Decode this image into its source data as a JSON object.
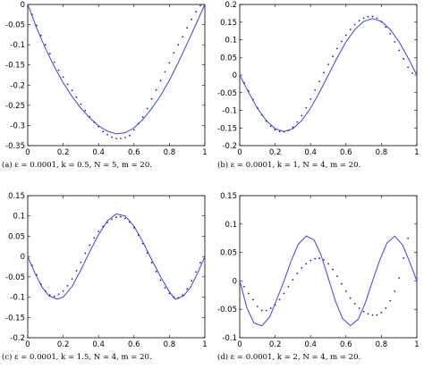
{
  "colors": {
    "line": "#3b46d6",
    "points": "#1a1ab4",
    "axes": "#000000"
  },
  "chart_data": [
    {
      "type": "line",
      "caption": "(a) ε = 0.0001, k = 0.5, N = 5, m = 20.",
      "xlim": [
        0,
        1
      ],
      "ylim": [
        -0.35,
        0
      ],
      "xticks": [
        0,
        0.2,
        0.4,
        0.6,
        0.8,
        1
      ],
      "xtick_labels": [
        "0",
        "0.2",
        "0.4",
        "0.6",
        "0.8",
        "1"
      ],
      "yticks": [
        0,
        -0.05,
        -0.1,
        -0.15,
        -0.2,
        -0.25,
        -0.3,
        -0.35
      ],
      "ytick_labels": [
        "0",
        "-0.05",
        "-0.1",
        "-0.15",
        "-0.2",
        "-0.25",
        "-0.3",
        "-0.35"
      ],
      "grid": false,
      "series": [
        {
          "style": "line",
          "x": [
            0,
            0.05,
            0.1,
            0.15,
            0.2,
            0.25,
            0.3,
            0.35,
            0.4,
            0.45,
            0.5,
            0.55,
            0.6,
            0.65,
            0.7,
            0.75,
            0.8,
            0.85,
            0.9,
            0.95,
            1
          ],
          "y": [
            0,
            -0.058,
            -0.109,
            -0.154,
            -0.194,
            -0.228,
            -0.257,
            -0.281,
            -0.301,
            -0.314,
            -0.321,
            -0.318,
            -0.306,
            -0.285,
            -0.258,
            -0.226,
            -0.188,
            -0.144,
            -0.097,
            -0.049,
            0
          ]
        },
        {
          "style": "points",
          "x": [
            0.025,
            0.05,
            0.075,
            0.1,
            0.125,
            0.15,
            0.175,
            0.2,
            0.225,
            0.25,
            0.275,
            0.3,
            0.325,
            0.35,
            0.375,
            0.4,
            0.425,
            0.45,
            0.475,
            0.5,
            0.525,
            0.55,
            0.575,
            0.6,
            0.625,
            0.65,
            0.675,
            0.7,
            0.725,
            0.75,
            0.775,
            0.8,
            0.825,
            0.85,
            0.875,
            0.9,
            0.925,
            0.95,
            0.975
          ],
          "y": [
            -0.025,
            -0.052,
            -0.077,
            -0.1,
            -0.122,
            -0.143,
            -0.163,
            -0.18,
            -0.198,
            -0.213,
            -0.23,
            -0.247,
            -0.263,
            -0.278,
            -0.292,
            -0.303,
            -0.315,
            -0.323,
            -0.329,
            -0.332,
            -0.332,
            -0.33,
            -0.325,
            -0.311,
            -0.296,
            -0.279,
            -0.258,
            -0.234,
            -0.212,
            -0.189,
            -0.167,
            -0.145,
            -0.12,
            -0.1,
            -0.08,
            -0.058,
            -0.037,
            -0.018,
            -0.003
          ]
        }
      ]
    },
    {
      "type": "line",
      "caption": "(b) ε = 0.0001, k = 1, N = 4, m = 20.",
      "xlim": [
        0,
        1
      ],
      "ylim": [
        -0.2,
        0.2
      ],
      "xticks": [
        0,
        0.2,
        0.4,
        0.6,
        0.8,
        1
      ],
      "xtick_labels": [
        "0",
        "0.2",
        "0.4",
        "0.6",
        "0.8",
        "1"
      ],
      "yticks": [
        0.2,
        0.15,
        0.1,
        0.05,
        0,
        -0.05,
        -0.1,
        -0.15,
        -0.2
      ],
      "ytick_labels": [
        "0.2",
        "0.15",
        "0.1",
        "0.05",
        "0",
        "-0.05",
        "-0.1",
        "-0.15",
        "-0.2"
      ],
      "grid": false,
      "series": [
        {
          "style": "line",
          "x": [
            0,
            0.05,
            0.1,
            0.15,
            0.2,
            0.25,
            0.3,
            0.35,
            0.4,
            0.45,
            0.5,
            0.55,
            0.6,
            0.65,
            0.7,
            0.75,
            0.8,
            0.85,
            0.9,
            0.95,
            1
          ],
          "y": [
            0,
            -0.049,
            -0.094,
            -0.129,
            -0.152,
            -0.16,
            -0.152,
            -0.129,
            -0.094,
            -0.049,
            0,
            0.049,
            0.094,
            0.129,
            0.152,
            0.16,
            0.152,
            0.129,
            0.094,
            0.049,
            0
          ]
        },
        {
          "style": "points",
          "x": [
            0.025,
            0.05,
            0.075,
            0.1,
            0.125,
            0.15,
            0.175,
            0.2,
            0.225,
            0.25,
            0.275,
            0.3,
            0.325,
            0.35,
            0.375,
            0.4,
            0.425,
            0.45,
            0.475,
            0.5,
            0.525,
            0.55,
            0.575,
            0.6,
            0.625,
            0.65,
            0.675,
            0.7,
            0.725,
            0.75,
            0.775,
            0.8,
            0.825,
            0.85,
            0.875,
            0.9,
            0.925,
            0.95,
            0.975
          ],
          "y": [
            -0.022,
            -0.045,
            -0.07,
            -0.093,
            -0.113,
            -0.13,
            -0.145,
            -0.155,
            -0.16,
            -0.161,
            -0.157,
            -0.148,
            -0.133,
            -0.115,
            -0.093,
            -0.068,
            -0.043,
            -0.018,
            0.007,
            0.03,
            0.053,
            0.075,
            0.095,
            0.113,
            0.129,
            0.143,
            0.154,
            0.161,
            0.165,
            0.166,
            0.161,
            0.151,
            0.136,
            0.117,
            0.094,
            0.07,
            0.046,
            0.022,
            0.005
          ]
        }
      ]
    },
    {
      "type": "line",
      "caption": "(c) ε = 0.0001, k = 1.5, N = 4, m = 20.",
      "xlim": [
        0,
        1
      ],
      "ylim": [
        -0.2,
        0.15
      ],
      "xticks": [
        0,
        0.2,
        0.4,
        0.6,
        0.8,
        1
      ],
      "xtick_labels": [
        "0",
        "0.2",
        "0.4",
        "0.6",
        "0.8",
        "1"
      ],
      "yticks": [
        0.15,
        0.1,
        0.05,
        0,
        -0.05,
        -0.1,
        -0.15,
        -0.2
      ],
      "ytick_labels": [
        "0.15",
        "0.1",
        "0.05",
        "0",
        "-0.05",
        "-0.1",
        "-0.15",
        "-0.2"
      ],
      "grid": false,
      "series": [
        {
          "style": "line",
          "x": [
            0,
            0.04,
            0.08,
            0.12,
            0.167,
            0.2,
            0.25,
            0.3,
            0.35,
            0.4,
            0.45,
            0.5,
            0.55,
            0.6,
            0.65,
            0.7,
            0.75,
            0.8,
            0.833,
            0.88,
            0.92,
            0.96,
            1
          ],
          "y": [
            0,
            -0.04,
            -0.075,
            -0.097,
            -0.105,
            -0.1,
            -0.074,
            -0.033,
            0.012,
            0.054,
            0.088,
            0.105,
            0.1,
            0.075,
            0.036,
            -0.008,
            -0.05,
            -0.087,
            -0.105,
            -0.097,
            -0.075,
            -0.04,
            0
          ]
        },
        {
          "style": "points",
          "x": [
            0.025,
            0.05,
            0.075,
            0.1,
            0.125,
            0.15,
            0.175,
            0.2,
            0.225,
            0.25,
            0.275,
            0.3,
            0.325,
            0.35,
            0.375,
            0.4,
            0.425,
            0.45,
            0.475,
            0.5,
            0.525,
            0.55,
            0.575,
            0.6,
            0.625,
            0.65,
            0.675,
            0.7,
            0.725,
            0.75,
            0.775,
            0.8,
            0.825,
            0.85,
            0.875,
            0.9,
            0.925,
            0.95,
            0.975
          ],
          "y": [
            -0.022,
            -0.045,
            -0.068,
            -0.085,
            -0.095,
            -0.098,
            -0.093,
            -0.085,
            -0.072,
            -0.055,
            -0.035,
            -0.014,
            0.008,
            0.028,
            0.046,
            0.062,
            0.074,
            0.084,
            0.092,
            0.097,
            0.098,
            0.094,
            0.085,
            0.071,
            0.053,
            0.032,
            0.009,
            -0.015,
            -0.037,
            -0.058,
            -0.077,
            -0.091,
            -0.1,
            -0.102,
            -0.095,
            -0.08,
            -0.06,
            -0.038,
            -0.015
          ]
        }
      ]
    },
    {
      "type": "line",
      "caption": "(d) ε = 0.0001, k = 2, N = 4, m = 20.",
      "xlim": [
        0,
        1
      ],
      "ylim": [
        -0.1,
        0.15
      ],
      "xticks": [
        0,
        0.2,
        0.4,
        0.6,
        0.8,
        1
      ],
      "xtick_labels": [
        "0",
        "0.2",
        "0.4",
        "0.6",
        "0.8",
        "1"
      ],
      "yticks": [
        0.15,
        0.1,
        0.05,
        0,
        -0.05,
        -0.1
      ],
      "ytick_labels": [
        "0.15",
        "0.1",
        "0.05",
        "0",
        "-0.05",
        "-0.1"
      ],
      "grid": false,
      "series": [
        {
          "style": "line",
          "x": [
            0,
            0.04,
            0.08,
            0.125,
            0.17,
            0.21,
            0.25,
            0.29,
            0.33,
            0.375,
            0.42,
            0.46,
            0.5,
            0.54,
            0.58,
            0.625,
            0.67,
            0.71,
            0.75,
            0.79,
            0.83,
            0.875,
            0.92,
            0.96,
            1
          ],
          "y": [
            0,
            -0.047,
            -0.074,
            -0.079,
            -0.063,
            -0.032,
            0,
            0.035,
            0.064,
            0.079,
            0.072,
            0.045,
            0.005,
            -0.035,
            -0.066,
            -0.079,
            -0.067,
            -0.038,
            0,
            0.036,
            0.066,
            0.079,
            0.063,
            0.033,
            0
          ]
        },
        {
          "style": "points",
          "x": [
            0.025,
            0.05,
            0.075,
            0.1,
            0.125,
            0.15,
            0.175,
            0.2,
            0.225,
            0.25,
            0.275,
            0.3,
            0.325,
            0.35,
            0.375,
            0.4,
            0.425,
            0.45,
            0.475,
            0.5,
            0.525,
            0.55,
            0.575,
            0.6,
            0.625,
            0.65,
            0.675,
            0.7,
            0.725,
            0.75,
            0.775,
            0.8,
            0.825,
            0.85,
            0.875,
            0.9,
            0.925,
            0.95
          ],
          "y": [
            -0.01,
            -0.022,
            -0.033,
            -0.045,
            -0.052,
            -0.052,
            -0.048,
            -0.042,
            -0.033,
            -0.022,
            -0.01,
            0.002,
            0.013,
            0.023,
            0.03,
            0.036,
            0.039,
            0.04,
            0.037,
            0.03,
            0.02,
            0.008,
            -0.005,
            -0.018,
            -0.03,
            -0.04,
            -0.048,
            -0.054,
            -0.058,
            -0.06,
            -0.06,
            -0.056,
            -0.048,
            -0.035,
            -0.018,
            0.005,
            0.04,
            0.075
          ]
        }
      ]
    }
  ]
}
